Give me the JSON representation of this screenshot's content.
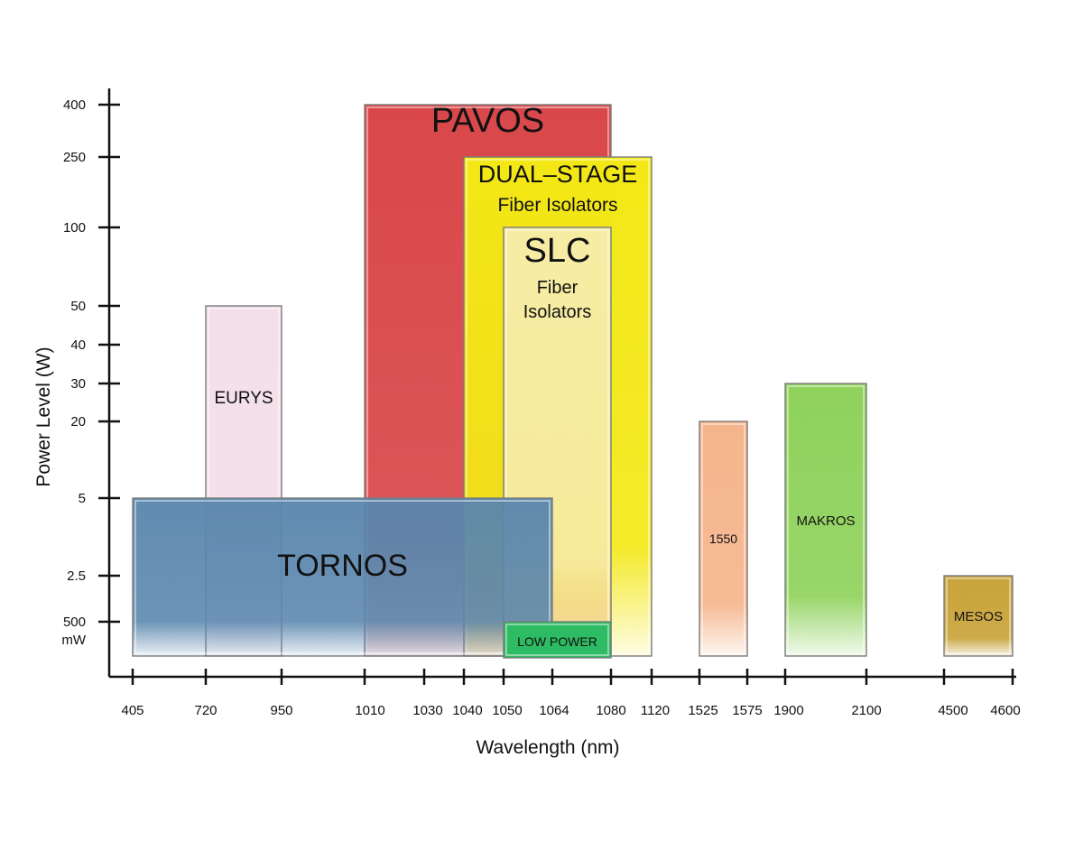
{
  "chart_data": {
    "type": "bar",
    "xlabel": "Wavelength (nm)",
    "ylabel": "Power Level (W)",
    "x_ticks": [
      "405",
      "720",
      "950",
      "1010",
      "1030",
      "1040",
      "1050",
      "1064",
      "1080",
      "1120",
      "1525",
      "1575",
      "1900",
      "2100",
      "4500",
      "4600"
    ],
    "y_ticks": [
      "500\nmW",
      "2.5",
      "5",
      "20",
      "30",
      "40",
      "50",
      "100",
      "250",
      "400"
    ],
    "y_tick_values": [
      0.5,
      2.5,
      5,
      20,
      30,
      40,
      50,
      100,
      250,
      400
    ],
    "series": [
      {
        "name": "TORNOS",
        "x_start": "405",
        "x_end": "1064",
        "y_max": 5,
        "color": "#5a86ad",
        "labels": [
          "TORNOS"
        ]
      },
      {
        "name": "EURYS",
        "x_start": "720",
        "x_end": "950",
        "y_max": 50,
        "color": "#f2dde9",
        "labels": [
          "EURYS"
        ]
      },
      {
        "name": "PAVOS",
        "x_start": "1010",
        "x_end": "1080",
        "y_max": 400,
        "color": "#d9474a",
        "labels": [
          "PAVOS"
        ]
      },
      {
        "name": "DUAL-STAGE",
        "x_start": "1040",
        "x_end": "1120",
        "y_max": 250,
        "color": "#f3e816",
        "labels": [
          "DUAL–STAGE",
          "Fiber Isolators"
        ]
      },
      {
        "name": "SLC",
        "x_start": "1050",
        "x_end": "1080",
        "y_max": 100,
        "color": "#f7edb0",
        "labels": [
          "SLC",
          "Fiber",
          "Isolators"
        ]
      },
      {
        "name": "LOW POWER",
        "x_start": "1050",
        "x_end": "1080",
        "y_max": 0.5,
        "color": "#2dbb63",
        "labels": [
          "LOW POWER"
        ]
      },
      {
        "name": "1550",
        "x_start": "1525",
        "x_end": "1575",
        "y_max": 20,
        "color": "#f5b58c",
        "labels": [
          "1550"
        ]
      },
      {
        "name": "MAKROS",
        "x_start": "1900",
        "x_end": "2100",
        "y_max": 30,
        "color": "#8fd25c",
        "labels": [
          "MAKROS"
        ]
      },
      {
        "name": "MESOS",
        "x_start": "4500",
        "x_end": "4600",
        "y_max": 2.5,
        "color": "#c9a33a",
        "labels": [
          "MESOS"
        ]
      }
    ]
  }
}
